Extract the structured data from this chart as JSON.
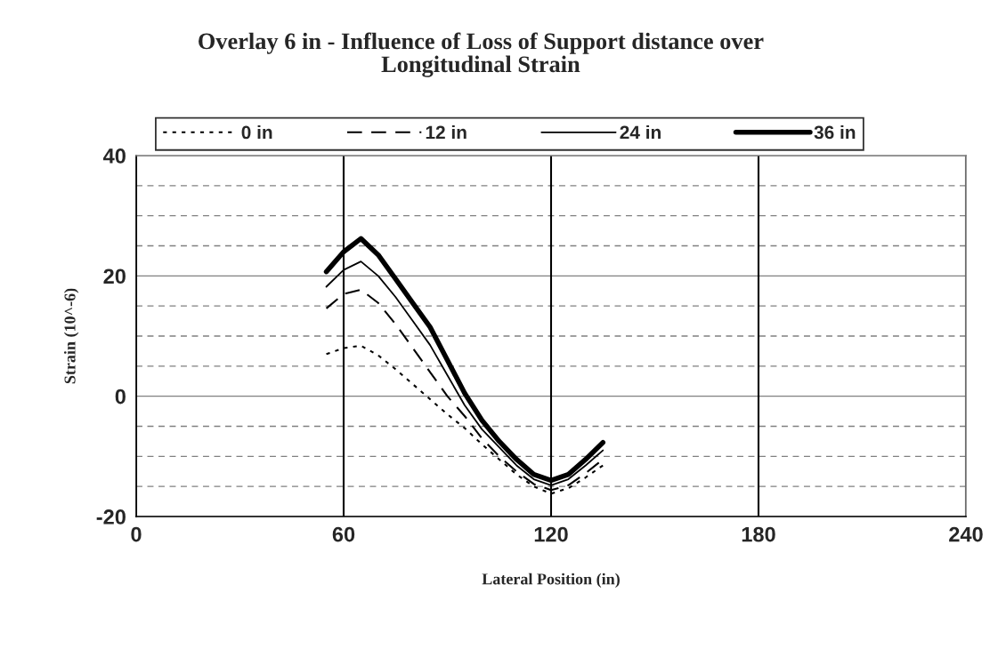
{
  "chart_data": {
    "type": "line",
    "title": "Overlay 6 in - Influence of Loss of Support distance over\nLongitudinal Strain",
    "xlabel": "Lateral Position (in)",
    "ylabel": "Strain (10^-6)",
    "x": [
      55,
      60,
      65,
      70,
      75,
      80,
      85,
      90,
      95,
      100,
      105,
      110,
      115,
      120,
      125,
      130,
      135
    ],
    "series": [
      {
        "name": "0 in",
        "color": "#000000",
        "line_style": "dotted",
        "values": [
          7,
          8,
          8.4,
          6.8,
          4.5,
          2,
          -0.5,
          -3,
          -5.3,
          -8,
          -10.5,
          -13,
          -15,
          -16.2,
          -15.3,
          -13.5,
          -11.5
        ]
      },
      {
        "name": "12 in",
        "color": "#000000",
        "line_style": "dashed",
        "values": [
          14.6,
          17,
          17.7,
          15.5,
          12,
          8,
          4,
          0,
          -3.3,
          -7,
          -10,
          -12.5,
          -14.6,
          -15.6,
          -14.8,
          -12.8,
          -10.5
        ]
      },
      {
        "name": "24 in",
        "color": "#000000",
        "line_style": "solid",
        "values": [
          18.2,
          21,
          22.4,
          20,
          16.5,
          12.5,
          8.5,
          3.5,
          -1.5,
          -5.5,
          -8.5,
          -11.5,
          -13.8,
          -14.8,
          -13.8,
          -11.5,
          -9
        ]
      },
      {
        "name": "36 in",
        "color": "#000000",
        "line_style": "solid",
        "values": [
          20.7,
          24,
          26.2,
          23.5,
          19.5,
          15.5,
          11.5,
          6,
          0.5,
          -4,
          -7.5,
          -10.5,
          -13,
          -14,
          -13,
          -10.5,
          -7.7
        ]
      }
    ],
    "xlim": [
      0,
      240
    ],
    "xticks": [
      0,
      60,
      120,
      180,
      240
    ],
    "ylim": [
      -20,
      40
    ],
    "yticks": [
      -20,
      {
        "value": -15,
        "label": null
      },
      {
        "value": -10,
        "label": null
      },
      {
        "value": -5,
        "label": null
      },
      0,
      {
        "value": 5,
        "label": null
      },
      {
        "value": 10,
        "label": null
      },
      {
        "value": 15,
        "label": null
      },
      20,
      {
        "value": 25,
        "label": null
      },
      {
        "value": 30,
        "label": null
      },
      {
        "value": 35,
        "label": null
      },
      40
    ],
    "grid": true,
    "legend": "top",
    "marker": "none"
  }
}
